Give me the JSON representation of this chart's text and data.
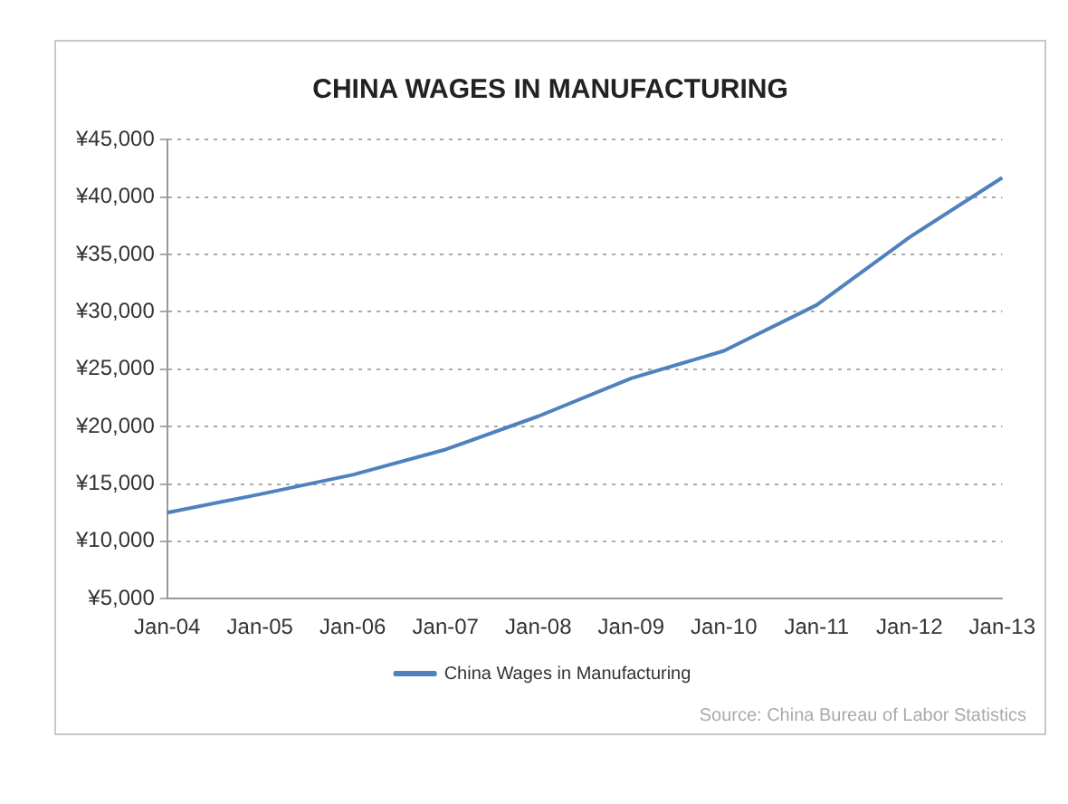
{
  "chart_data": {
    "type": "line",
    "title": "CHINA WAGES IN MANUFACTURING",
    "categories": [
      "Jan-04",
      "Jan-05",
      "Jan-06",
      "Jan-07",
      "Jan-08",
      "Jan-09",
      "Jan-10",
      "Jan-11",
      "Jan-12",
      "Jan-13"
    ],
    "series": [
      {
        "name": "China Wages in Manufacturing",
        "color": "#4f81bd",
        "values": [
          12500,
          14100,
          15800,
          18000,
          20900,
          24200,
          26600,
          30600,
          36500,
          41700
        ]
      }
    ],
    "ylim": [
      5000,
      45000
    ],
    "yticks": [
      {
        "value": 5000,
        "label": "¥5,000"
      },
      {
        "value": 10000,
        "label": "¥10,000"
      },
      {
        "value": 15000,
        "label": "¥15,000"
      },
      {
        "value": 20000,
        "label": "¥20,000"
      },
      {
        "value": 25000,
        "label": "¥25,000"
      },
      {
        "value": 30000,
        "label": "¥30,000"
      },
      {
        "value": 35000,
        "label": "¥35,000"
      },
      {
        "value": 40000,
        "label": "¥40,000"
      },
      {
        "value": 45000,
        "label": "¥45,000"
      }
    ],
    "grid": "y",
    "legend": "bottom",
    "marker": "none",
    "line_style": "solid",
    "annotations": [
      "Source: China Bureau of Labor Statistics"
    ]
  }
}
